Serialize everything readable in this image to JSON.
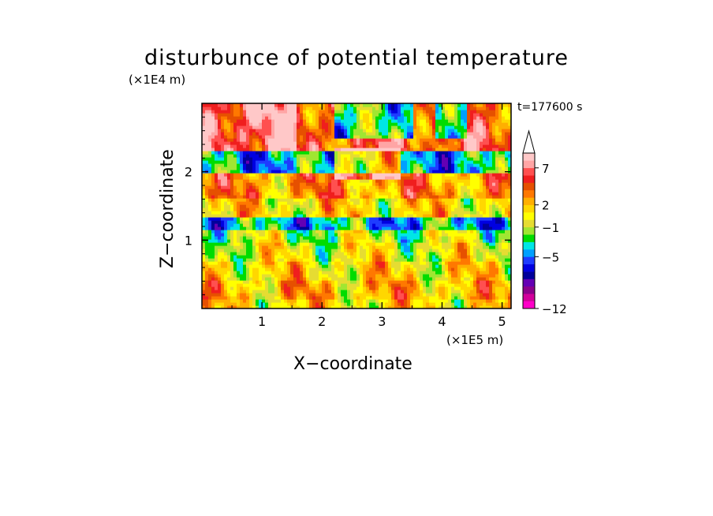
{
  "chart_data": {
    "type": "heatmap",
    "title": "disturbunce of potential temperature",
    "xlabel": "X−coordinate",
    "ylabel": "Z−coordinate",
    "x_unit": "(×1E5 m)",
    "y_unit": "(×1E4 m)",
    "time_label": "t=177600 s",
    "xlim": [
      0,
      5.15
    ],
    "ylim": [
      0,
      3.0
    ],
    "x_ticks": [
      1,
      2,
      3,
      4,
      5
    ],
    "y_ticks": [
      1,
      2
    ],
    "colorbar": {
      "levels": [
        -12,
        -11,
        -10,
        -9,
        -8,
        -7,
        -6,
        -5,
        -4,
        -3,
        -2,
        -1,
        0,
        1,
        2,
        3,
        4,
        5,
        6,
        7,
        8
      ],
      "colors": [
        "#ff00c8",
        "#d2009b",
        "#8c008c",
        "#6400b4",
        "#00009b",
        "#0000e1",
        "#1e3cff",
        "#00a0ff",
        "#00e6e6",
        "#00dc00",
        "#a0e632",
        "#e6dc32",
        "#ffff00",
        "#ffd700",
        "#ffaf00",
        "#ff7800",
        "#e65000",
        "#f01e1e",
        "#ff5050",
        "#ffa5a5",
        "#ffc8c8"
      ],
      "tick_labels": [
        "7",
        "2",
        "−1",
        "−5",
        "−12"
      ],
      "tick_values": [
        7,
        2,
        -1,
        -5,
        -12
      ],
      "extend": "max"
    },
    "layers": [
      {
        "z_range": [
          0.0,
          0.15
        ],
        "dominant": 1
      },
      {
        "z_range": [
          0.15,
          0.4
        ],
        "dominant": 2
      },
      {
        "z_range": [
          0.4,
          0.7
        ],
        "dominant": 1
      },
      {
        "z_range": [
          0.7,
          0.95
        ],
        "dominant": 0
      },
      {
        "z_range": [
          0.95,
          1.15
        ],
        "dominant": -1
      },
      {
        "z_range": [
          1.15,
          1.35
        ],
        "dominant": -4
      },
      {
        "z_range": [
          1.35,
          1.6
        ],
        "dominant": 1
      },
      {
        "z_range": [
          1.6,
          2.0
        ],
        "dominant": 3
      },
      {
        "z_range": [
          2.0,
          2.3
        ],
        "dominant": -4
      },
      {
        "z_range": [
          2.3,
          3.0
        ],
        "dominant": 5
      }
    ]
  }
}
